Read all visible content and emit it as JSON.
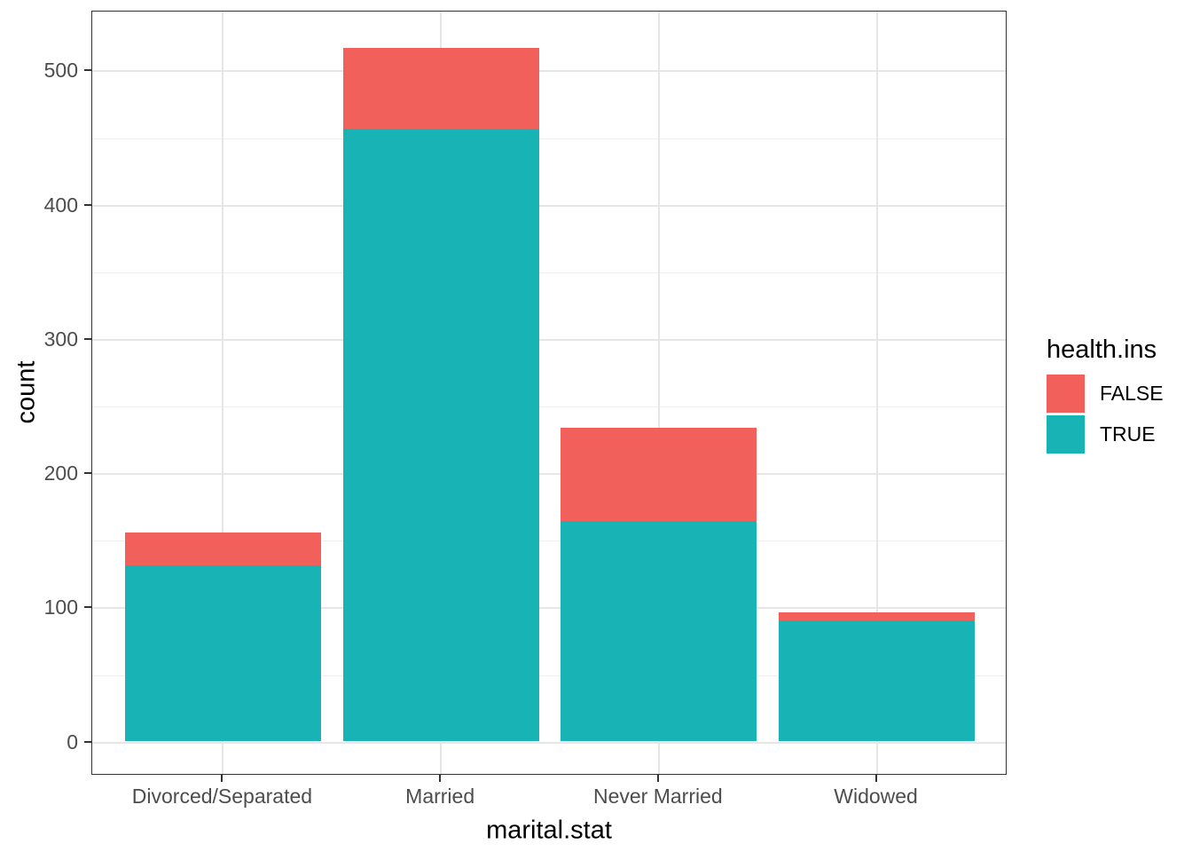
{
  "chart_data": {
    "type": "bar",
    "stacked": true,
    "title": "",
    "xlabel": "marital.stat",
    "ylabel": "count",
    "categories": [
      "Divorced/Separated",
      "Married",
      "Never Married",
      "Widowed"
    ],
    "series": [
      {
        "name": "FALSE",
        "color": "#F2605C",
        "values": [
          24,
          60,
          69,
          6
        ]
      },
      {
        "name": "TRUE",
        "color": "#17B3B5",
        "values": [
          131,
          456,
          164,
          90
        ]
      }
    ],
    "yticks": [
      0,
      100,
      200,
      300,
      400,
      500
    ],
    "yticks_minor": [
      50,
      150,
      250,
      350,
      450
    ],
    "ylim": [
      -26,
      545
    ],
    "grid": "major+minor",
    "legend": {
      "title": "health.ins",
      "position": "right",
      "entries": [
        "FALSE",
        "TRUE"
      ]
    }
  },
  "colors": {
    "bar_false": "#F2605C",
    "bar_true": "#17B3B5",
    "grid_major": "#E6E6E6",
    "grid_minor": "#EFEFEF",
    "panel_border": "#333333",
    "axis_text": "#4D4D4D",
    "title_text": "#000000",
    "background": "#FFFFFF"
  }
}
